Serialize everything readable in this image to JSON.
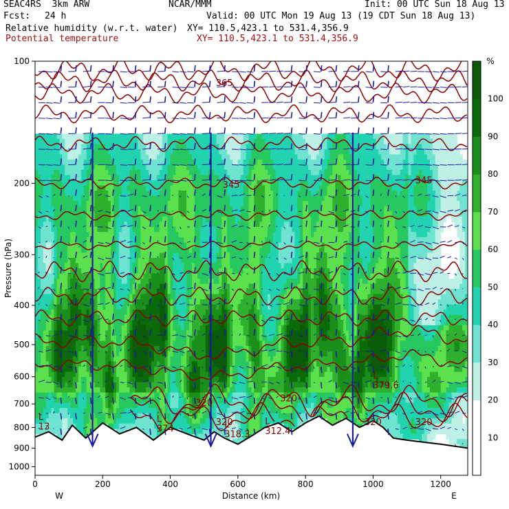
{
  "header": {
    "model_line": "SEAC4RS  3km ARW",
    "org": "NCAR/MMM",
    "init": "Init: 00 UTC Sun 18 Aug 13",
    "fcst_label": "Fcst:",
    "fcst_value": "24 h",
    "valid": "Valid: 00 UTC Mon 19 Aug 13 (19 CDT Sun 18 Aug 13)",
    "field1": "Relative humidity (w.r.t. water)",
    "field1_xy": "XY= 110.5,423.1 to 531.4,356.9",
    "field2": "Potential temperature",
    "field2_xy": "XY= 110.5,423.1 to 531.4,356.9"
  },
  "colors": {
    "theta_contour": "#8b0000",
    "wind_vectors": "#1a1aa0",
    "terrain": "#000000"
  },
  "chart_data": {
    "type": "heatmap",
    "xlabel": "Distance (km)",
    "ylabel": "Pressure (hPa)",
    "xlim": [
      0,
      1280
    ],
    "ylim": [
      100,
      1050
    ],
    "y_log_scale": true,
    "x_ticks": [
      0,
      200,
      400,
      600,
      800,
      1000,
      1200
    ],
    "y_ticks": [
      100,
      200,
      300,
      400,
      500,
      600,
      700,
      800,
      900,
      1000
    ],
    "endpoints": {
      "left": "W",
      "right": "E"
    },
    "colorbar": {
      "unit": "%",
      "levels": [
        10,
        20,
        30,
        40,
        50,
        60,
        70,
        80,
        90,
        100
      ],
      "colors": [
        "#ffffff",
        "#ffffff",
        "#bff0e6",
        "#6fe3cf",
        "#22d3b0",
        "#28c860",
        "#5be14d",
        "#2fb02f",
        "#1a8f1a",
        "#0b6b0b",
        "#0a5a0a"
      ]
    },
    "theta_contours": [
      {
        "label": "365",
        "x_km": 560,
        "p": 115
      },
      {
        "label": "345",
        "x_km": 580,
        "p": 205
      },
      {
        "label": "345",
        "x_km": 1150,
        "p": 200
      },
      {
        "label": "320",
        "x_km": 500,
        "p": 708
      },
      {
        "label": "320",
        "x_km": 560,
        "p": 790
      },
      {
        "label": "320",
        "x_km": 750,
        "p": 690
      },
      {
        "label": "320",
        "x_km": 1000,
        "p": 790
      },
      {
        "label": "320",
        "x_km": 1150,
        "p": 790
      }
    ],
    "terrain_annotations": [
      {
        "label": "L",
        "value": "13",
        "x_km": 10,
        "p": 810
      },
      {
        "label": "L",
        "value": "374",
        "x_km": 360,
        "p": 820
      },
      {
        "label": "L",
        "value": "318.3",
        "x_km": 560,
        "p": 845
      },
      {
        "label": "L",
        "value": "312.4",
        "x_km": 680,
        "p": 830
      },
      {
        "label": "L",
        "value": "379.6",
        "x_km": 1000,
        "p": 640
      }
    ],
    "terrain_surface": [
      {
        "x": 0,
        "p": 845
      },
      {
        "x": 40,
        "p": 820
      },
      {
        "x": 80,
        "p": 860
      },
      {
        "x": 110,
        "p": 790
      },
      {
        "x": 150,
        "p": 850
      },
      {
        "x": 200,
        "p": 780
      },
      {
        "x": 250,
        "p": 830
      },
      {
        "x": 300,
        "p": 800
      },
      {
        "x": 350,
        "p": 860
      },
      {
        "x": 400,
        "p": 800
      },
      {
        "x": 450,
        "p": 830
      },
      {
        "x": 500,
        "p": 860
      },
      {
        "x": 530,
        "p": 820
      },
      {
        "x": 560,
        "p": 850
      },
      {
        "x": 600,
        "p": 880
      },
      {
        "x": 640,
        "p": 840
      },
      {
        "x": 680,
        "p": 800
      },
      {
        "x": 720,
        "p": 780
      },
      {
        "x": 760,
        "p": 820
      },
      {
        "x": 800,
        "p": 780
      },
      {
        "x": 840,
        "p": 750
      },
      {
        "x": 880,
        "p": 790
      },
      {
        "x": 920,
        "p": 760
      },
      {
        "x": 960,
        "p": 800
      },
      {
        "x": 1000,
        "p": 770
      },
      {
        "x": 1030,
        "p": 800
      },
      {
        "x": 1060,
        "p": 850
      },
      {
        "x": 1100,
        "p": 860
      },
      {
        "x": 1150,
        "p": 870
      },
      {
        "x": 1200,
        "p": 880
      },
      {
        "x": 1280,
        "p": 900
      }
    ],
    "grid": false
  }
}
